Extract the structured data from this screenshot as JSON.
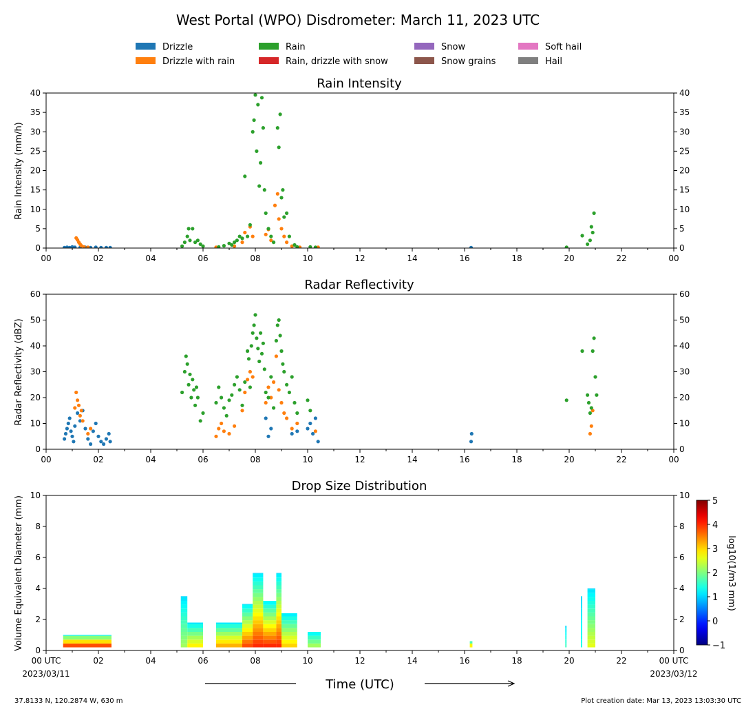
{
  "figure": {
    "title": "West Portal (WPO) Disdrometer: March 11, 2023 UTC",
    "xlabel": "Time (UTC)",
    "start_date": "2023/03/11",
    "end_date": "2023/03/12",
    "location": "37.8133 N, 120.2874 W, 630 m",
    "creation": "Plot creation date: Mar 13, 2023 13:03:30 UTC"
  },
  "legend": [
    {
      "label": "Drizzle",
      "color": "#1f77b4"
    },
    {
      "label": "Drizzle with rain",
      "color": "#ff7f0e"
    },
    {
      "label": "Rain",
      "color": "#2ca02c"
    },
    {
      "label": "Rain, drizzle with snow",
      "color": "#d62728"
    },
    {
      "label": "Snow",
      "color": "#9467bd"
    },
    {
      "label": "Snow grains",
      "color": "#8c564b"
    },
    {
      "label": "Soft hail",
      "color": "#e377c2"
    },
    {
      "label": "Hail",
      "color": "#7f7f7f"
    }
  ],
  "colorbar": {
    "label": "log10(1/m3 mm)",
    "range": [
      -1,
      5
    ],
    "ticks": [
      "5",
      "4",
      "3",
      "2",
      "1",
      "0",
      "−1"
    ]
  },
  "chart_data": [
    {
      "type": "scatter",
      "title": "Rain Intensity",
      "ylabel": "Rain Intensity (mm/h)",
      "xlim": [
        0,
        24
      ],
      "ylim": [
        0,
        40
      ],
      "xticks": [
        "00",
        "02",
        "04",
        "06",
        "08",
        "10",
        "12",
        "14",
        "16",
        "18",
        "20",
        "22",
        "00"
      ],
      "yticks": [
        "0",
        "5",
        "10",
        "15",
        "20",
        "25",
        "30",
        "35",
        "40"
      ],
      "series": [
        {
          "name": "Drizzle",
          "points": [
            [
              0.7,
              0.1
            ],
            [
              0.8,
              0.2
            ],
            [
              0.9,
              0.1
            ],
            [
              1.0,
              0.3
            ],
            [
              1.1,
              0.2
            ],
            [
              1.3,
              0.1
            ],
            [
              1.5,
              0.2
            ],
            [
              1.7,
              0.1
            ],
            [
              1.9,
              0.2
            ],
            [
              2.1,
              0.1
            ],
            [
              2.3,
              0.1
            ],
            [
              2.45,
              0.1
            ],
            [
              16.25,
              0.1
            ]
          ]
        },
        {
          "name": "Drizzle with rain",
          "points": [
            [
              1.15,
              2.6
            ],
            [
              1.2,
              2.1
            ],
            [
              1.25,
              1.5
            ],
            [
              1.3,
              1.0
            ],
            [
              1.35,
              0.6
            ],
            [
              1.45,
              0.3
            ],
            [
              1.6,
              0.2
            ],
            [
              6.5,
              0.2
            ],
            [
              7.2,
              0.5
            ],
            [
              7.5,
              1.5
            ],
            [
              7.6,
              4.0
            ],
            [
              7.8,
              5.5
            ],
            [
              7.9,
              3.0
            ],
            [
              8.4,
              3.5
            ],
            [
              8.5,
              4.8
            ],
            [
              8.6,
              2.0
            ],
            [
              8.75,
              11.0
            ],
            [
              8.85,
              14.0
            ],
            [
              8.9,
              7.5
            ],
            [
              9.0,
              5.0
            ],
            [
              9.1,
              3.0
            ],
            [
              9.2,
              1.5
            ],
            [
              9.4,
              0.5
            ],
            [
              9.7,
              0.2
            ],
            [
              10.4,
              0.2
            ]
          ]
        },
        {
          "name": "Rain",
          "points": [
            [
              5.2,
              0.5
            ],
            [
              5.3,
              1.5
            ],
            [
              5.4,
              3.0
            ],
            [
              5.45,
              5.0
            ],
            [
              5.5,
              2.0
            ],
            [
              5.6,
              5.0
            ],
            [
              5.7,
              1.5
            ],
            [
              5.8,
              2.0
            ],
            [
              5.9,
              1.0
            ],
            [
              6.0,
              0.5
            ],
            [
              6.6,
              0.3
            ],
            [
              6.8,
              0.6
            ],
            [
              7.0,
              1.2
            ],
            [
              7.1,
              0.8
            ],
            [
              7.2,
              1.5
            ],
            [
              7.3,
              2.0
            ],
            [
              7.4,
              3.0
            ],
            [
              7.5,
              2.5
            ],
            [
              7.6,
              18.5
            ],
            [
              7.7,
              3.0
            ],
            [
              7.8,
              6.0
            ],
            [
              7.9,
              30.0
            ],
            [
              7.95,
              33.0
            ],
            [
              8.0,
              39.5
            ],
            [
              8.05,
              25.0
            ],
            [
              8.1,
              37.0
            ],
            [
              8.15,
              16.0
            ],
            [
              8.2,
              22.0
            ],
            [
              8.25,
              38.8
            ],
            [
              8.3,
              31.0
            ],
            [
              8.35,
              15.0
            ],
            [
              8.4,
              9.0
            ],
            [
              8.5,
              5.0
            ],
            [
              8.6,
              3.0
            ],
            [
              8.7,
              1.5
            ],
            [
              8.85,
              31.0
            ],
            [
              8.9,
              26.0
            ],
            [
              8.95,
              34.5
            ],
            [
              9.0,
              13.0
            ],
            [
              9.05,
              15.0
            ],
            [
              9.1,
              8.0
            ],
            [
              9.2,
              9.0
            ],
            [
              9.3,
              3.0
            ],
            [
              9.5,
              0.8
            ],
            [
              9.6,
              0.3
            ],
            [
              10.1,
              0.3
            ],
            [
              10.3,
              0.2
            ],
            [
              19.9,
              0.2
            ],
            [
              20.5,
              3.2
            ],
            [
              20.7,
              1.0
            ],
            [
              20.8,
              2.0
            ],
            [
              20.85,
              5.5
            ],
            [
              20.9,
              4.0
            ],
            [
              20.95,
              9.0
            ]
          ]
        }
      ]
    },
    {
      "type": "scatter",
      "title": "Radar Reflectivity",
      "ylabel": "Radar Reflectivity (dBZ)",
      "xlim": [
        0,
        24
      ],
      "ylim": [
        0,
        60
      ],
      "xticks": [
        "00",
        "02",
        "04",
        "06",
        "08",
        "10",
        "12",
        "14",
        "16",
        "18",
        "20",
        "22",
        "00"
      ],
      "yticks": [
        "0",
        "10",
        "20",
        "30",
        "40",
        "50",
        "60"
      ],
      "series": [
        {
          "name": "Drizzle",
          "points": [
            [
              0.7,
              4
            ],
            [
              0.75,
              6
            ],
            [
              0.8,
              8
            ],
            [
              0.85,
              10
            ],
            [
              0.9,
              12
            ],
            [
              0.95,
              7
            ],
            [
              1.0,
              5
            ],
            [
              1.05,
              3
            ],
            [
              1.1,
              9
            ],
            [
              1.2,
              14
            ],
            [
              1.3,
              11
            ],
            [
              1.4,
              15
            ],
            [
              1.5,
              8
            ],
            [
              1.6,
              4
            ],
            [
              1.7,
              2
            ],
            [
              1.8,
              7
            ],
            [
              1.9,
              10
            ],
            [
              2.0,
              5
            ],
            [
              2.1,
              3
            ],
            [
              2.2,
              2
            ],
            [
              2.3,
              4
            ],
            [
              2.4,
              6
            ],
            [
              2.45,
              3
            ],
            [
              8.4,
              12
            ],
            [
              8.5,
              5
            ],
            [
              8.6,
              8
            ],
            [
              9.4,
              6
            ],
            [
              9.6,
              7
            ],
            [
              10.0,
              8
            ],
            [
              10.1,
              10
            ],
            [
              10.2,
              6
            ],
            [
              10.3,
              12
            ],
            [
              10.4,
              3
            ],
            [
              16.25,
              3
            ],
            [
              16.27,
              6
            ]
          ]
        },
        {
          "name": "Drizzle with rain",
          "points": [
            [
              1.1,
              16
            ],
            [
              1.15,
              22
            ],
            [
              1.2,
              19
            ],
            [
              1.25,
              17
            ],
            [
              1.3,
              13
            ],
            [
              1.35,
              15
            ],
            [
              1.4,
              11
            ],
            [
              1.6,
              6
            ],
            [
              1.7,
              8
            ],
            [
              6.5,
              5
            ],
            [
              6.6,
              8
            ],
            [
              6.7,
              10
            ],
            [
              6.8,
              7
            ],
            [
              7.0,
              6
            ],
            [
              7.2,
              9
            ],
            [
              7.5,
              15
            ],
            [
              7.6,
              22
            ],
            [
              7.7,
              27
            ],
            [
              7.8,
              30
            ],
            [
              7.9,
              28
            ],
            [
              8.4,
              18
            ],
            [
              8.5,
              24
            ],
            [
              8.6,
              20
            ],
            [
              8.7,
              26
            ],
            [
              8.8,
              36
            ],
            [
              8.9,
              23
            ],
            [
              9.0,
              18
            ],
            [
              9.1,
              14
            ],
            [
              9.2,
              12
            ],
            [
              9.4,
              8
            ],
            [
              9.6,
              10
            ],
            [
              10.3,
              7
            ],
            [
              20.8,
              6
            ],
            [
              20.85,
              9
            ],
            [
              20.9,
              15
            ]
          ]
        },
        {
          "name": "Rain",
          "points": [
            [
              5.2,
              22
            ],
            [
              5.3,
              30
            ],
            [
              5.35,
              36
            ],
            [
              5.4,
              33
            ],
            [
              5.45,
              25
            ],
            [
              5.5,
              29
            ],
            [
              5.55,
              20
            ],
            [
              5.6,
              27
            ],
            [
              5.65,
              23
            ],
            [
              5.7,
              17
            ],
            [
              5.75,
              24
            ],
            [
              5.8,
              20
            ],
            [
              5.9,
              11
            ],
            [
              6.0,
              14
            ],
            [
              6.5,
              18
            ],
            [
              6.6,
              24
            ],
            [
              6.7,
              20
            ],
            [
              6.8,
              16
            ],
            [
              6.9,
              13
            ],
            [
              7.0,
              19
            ],
            [
              7.1,
              21
            ],
            [
              7.2,
              25
            ],
            [
              7.3,
              28
            ],
            [
              7.4,
              23
            ],
            [
              7.5,
              17
            ],
            [
              7.6,
              26
            ],
            [
              7.7,
              38
            ],
            [
              7.75,
              35
            ],
            [
              7.8,
              24
            ],
            [
              7.85,
              40
            ],
            [
              7.9,
              45
            ],
            [
              7.95,
              48
            ],
            [
              8.0,
              52
            ],
            [
              8.05,
              43
            ],
            [
              8.1,
              39
            ],
            [
              8.15,
              34
            ],
            [
              8.2,
              45
            ],
            [
              8.25,
              37
            ],
            [
              8.3,
              41
            ],
            [
              8.35,
              31
            ],
            [
              8.4,
              22
            ],
            [
              8.5,
              20
            ],
            [
              8.6,
              28
            ],
            [
              8.7,
              16
            ],
            [
              8.8,
              42
            ],
            [
              8.85,
              48
            ],
            [
              8.9,
              50
            ],
            [
              8.95,
              44
            ],
            [
              9.0,
              38
            ],
            [
              9.05,
              33
            ],
            [
              9.1,
              30
            ],
            [
              9.2,
              25
            ],
            [
              9.3,
              22
            ],
            [
              9.4,
              28
            ],
            [
              9.5,
              18
            ],
            [
              9.6,
              14
            ],
            [
              10.0,
              19
            ],
            [
              10.1,
              15
            ],
            [
              19.9,
              19
            ],
            [
              20.5,
              38
            ],
            [
              20.7,
              21
            ],
            [
              20.75,
              18
            ],
            [
              20.8,
              14
            ],
            [
              20.85,
              16
            ],
            [
              20.9,
              38
            ],
            [
              20.95,
              43
            ],
            [
              21.0,
              28
            ],
            [
              21.05,
              21
            ]
          ]
        }
      ]
    },
    {
      "type": "heatmap",
      "title": "Drop Size Distribution",
      "ylabel": "Volume Equivalent Diameter (mm)",
      "xlim": [
        0,
        24
      ],
      "ylim": [
        0,
        10
      ],
      "xticks": [
        "00 UTC",
        "02",
        "04",
        "06",
        "08",
        "10",
        "12",
        "14",
        "16",
        "18",
        "20",
        "22",
        "00 UTC"
      ],
      "yticks": [
        "0",
        "2",
        "4",
        "6",
        "8",
        "10"
      ],
      "columns": [
        {
          "t0": 0.65,
          "t1": 2.5,
          "dmax": 1.0,
          "peak": 3.8
        },
        {
          "t0": 5.15,
          "t1": 5.4,
          "dmax": 3.5,
          "peak": 2.2
        },
        {
          "t0": 5.4,
          "t1": 6.0,
          "dmax": 1.8,
          "peak": 2.8
        },
        {
          "t0": 6.5,
          "t1": 7.5,
          "dmax": 1.8,
          "peak": 3.2
        },
        {
          "t0": 7.5,
          "t1": 7.9,
          "dmax": 3.0,
          "peak": 3.8
        },
        {
          "t0": 7.9,
          "t1": 8.3,
          "dmax": 5.0,
          "peak": 4.0
        },
        {
          "t0": 8.3,
          "t1": 8.8,
          "dmax": 3.2,
          "peak": 4.0
        },
        {
          "t0": 8.8,
          "t1": 9.0,
          "dmax": 5.0,
          "peak": 4.0
        },
        {
          "t0": 9.0,
          "t1": 9.6,
          "dmax": 2.4,
          "peak": 3.0
        },
        {
          "t0": 10.0,
          "t1": 10.5,
          "dmax": 1.2,
          "peak": 2.2
        },
        {
          "t0": 16.2,
          "t1": 16.3,
          "dmax": 0.6,
          "peak": 2.8
        },
        {
          "t0": 19.85,
          "t1": 19.9,
          "dmax": 1.6,
          "peak": 1.6
        },
        {
          "t0": 20.45,
          "t1": 20.5,
          "dmax": 3.5,
          "peak": 1.4
        },
        {
          "t0": 20.7,
          "t1": 21.0,
          "dmax": 4.0,
          "peak": 2.6
        }
      ]
    }
  ]
}
